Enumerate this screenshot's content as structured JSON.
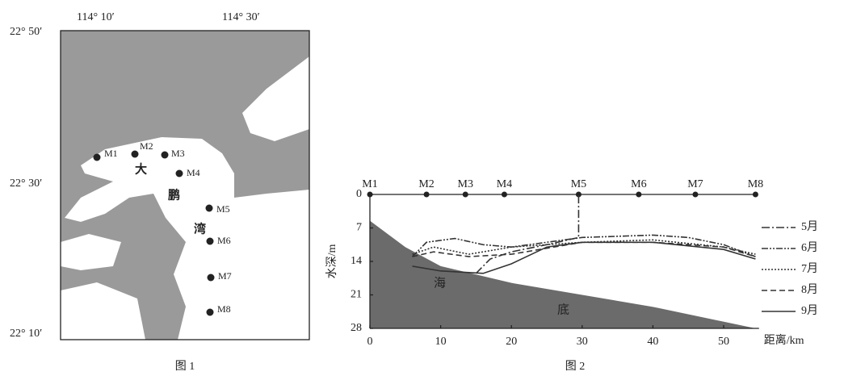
{
  "map": {
    "lon_labels": [
      "114° 10′",
      "114° 30′"
    ],
    "lat_labels": [
      "22° 50′",
      "22° 30′",
      "22° 10′"
    ],
    "stations": [
      "M1",
      "M2",
      "M3",
      "M4",
      "M5",
      "M6",
      "M7",
      "M8"
    ],
    "bay_name": [
      "大",
      "鹏",
      "湾"
    ],
    "caption": "图 1"
  },
  "chart_data": {
    "type": "line",
    "caption": "图 2",
    "x_label": "距离/km",
    "y_label": "水深/m",
    "xlim": [
      0,
      55
    ],
    "xticks": [
      0,
      10,
      20,
      30,
      40,
      50
    ],
    "ylim": [
      0,
      28
    ],
    "yticks": [
      0,
      7,
      14,
      21,
      28
    ],
    "y_inverted": true,
    "stations": {
      "labels": [
        "M1",
        "M2",
        "M3",
        "M4",
        "M5",
        "M6",
        "M7",
        "M8"
      ],
      "x": [
        0,
        8,
        13.5,
        19,
        29.5,
        38,
        46,
        54.5
      ]
    },
    "seabed": {
      "color": "#6b6b6b",
      "x": [
        0,
        5,
        10,
        20,
        30,
        40,
        54.5
      ],
      "values": [
        5.5,
        11,
        15,
        18.5,
        21,
        23.5,
        28
      ],
      "labels": [
        "海",
        "底"
      ]
    },
    "series": [
      {
        "name": "5月",
        "color": "#333333",
        "style": "dash-dot",
        "x": [
          15,
          17,
          20,
          25,
          29.5,
          29.5
        ],
        "values": [
          16.5,
          13.5,
          12,
          10.5,
          9,
          0
        ]
      },
      {
        "name": "6月",
        "color": "#333333",
        "style": "dash-dot-dot",
        "x": [
          6,
          8,
          12,
          16,
          20,
          30,
          40,
          45,
          50,
          54.5
        ],
        "values": [
          13,
          10,
          9.2,
          10.5,
          11,
          9,
          8.5,
          9,
          10.5,
          13
        ]
      },
      {
        "name": "7月",
        "color": "#333333",
        "style": "dotted",
        "x": [
          6,
          9,
          14,
          20,
          30,
          40,
          50,
          54.5
        ],
        "values": [
          12.5,
          11,
          12.5,
          11,
          10,
          9.5,
          11,
          12.5
        ]
      },
      {
        "name": "8月",
        "color": "#333333",
        "style": "dashed",
        "x": [
          6,
          9,
          14,
          20,
          30,
          40,
          50,
          54.5
        ],
        "values": [
          13,
          12,
          13,
          12.5,
          10,
          10,
          11,
          13
        ]
      },
      {
        "name": "9月",
        "color": "#333333",
        "style": "solid",
        "x": [
          6,
          10,
          16,
          20,
          25,
          30,
          40,
          50,
          54.5
        ],
        "values": [
          15,
          16,
          16.5,
          14.5,
          11,
          10,
          10,
          11.5,
          13.5
        ]
      }
    ]
  }
}
